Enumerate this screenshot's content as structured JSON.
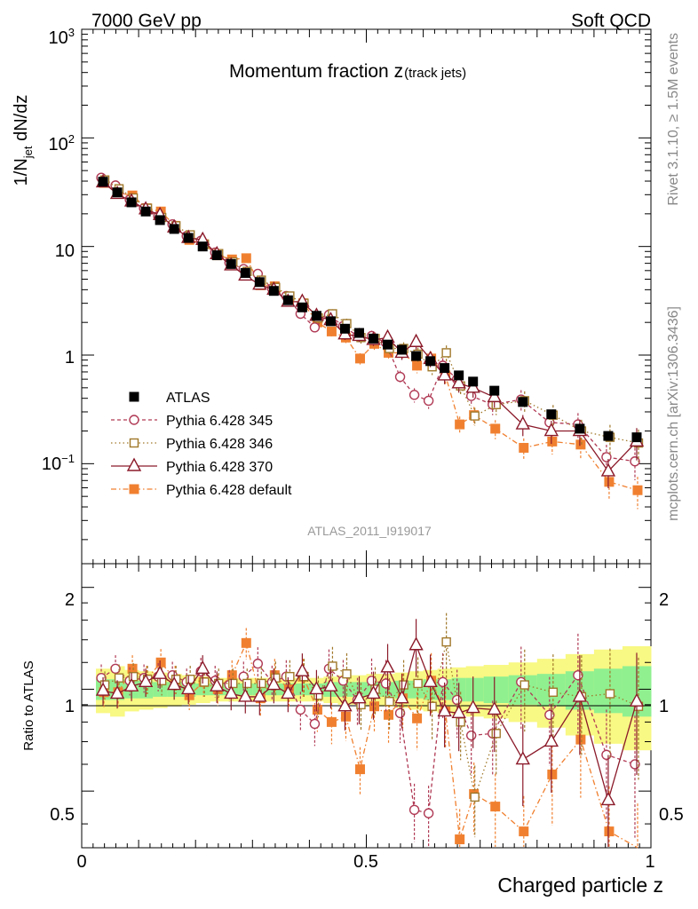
{
  "header": {
    "left": "7000 GeV pp",
    "right": "Soft QCD"
  },
  "side_labels": {
    "top": "Rivet 3.1.10, ≥ 1.5M events",
    "bottom": "mcplots.cern.ch [arXiv:1306.3436]"
  },
  "chart_data": {
    "type": "scatter",
    "title": "Momentum fraction z",
    "title_suffix": "(track jets)",
    "analysis_id": "ATLAS_2011_I919017",
    "xlabel": "Charged particle z",
    "ylabel": "1/N",
    "ylabel_sub": "jet",
    "ylabel_tail": " dN/dz",
    "ratio_ylabel": "Ratio to ATLAS",
    "xlim": [
      0,
      1
    ],
    "ylim": [
      0.012,
      1000
    ],
    "ratio_ylim": [
      0.34,
      2.35
    ],
    "x_ticks": [
      "0",
      "0.5",
      "1"
    ],
    "y_ticks": {
      "t1000": "10",
      "t1000_exp": "3",
      "t100": "10",
      "t100_exp": "2",
      "t10": "10",
      "t1": "1",
      "t01": "10",
      "t01_exp": "−1"
    },
    "ratio_ticks": [
      "0.5",
      "1",
      "2"
    ],
    "x": [
      0.0375,
      0.0625,
      0.0875,
      0.1125,
      0.1375,
      0.1625,
      0.1875,
      0.2125,
      0.2375,
      0.2625,
      0.2875,
      0.3125,
      0.3375,
      0.3625,
      0.3875,
      0.4125,
      0.4375,
      0.4625,
      0.4875,
      0.5125,
      0.5375,
      0.5625,
      0.5875,
      0.6125,
      0.6375,
      0.6625,
      0.6875,
      0.725,
      0.775,
      0.825,
      0.875,
      0.925,
      0.975
    ],
    "series": [
      {
        "name": "ATLAS",
        "color": "#000000",
        "marker": "square-filled",
        "dash": "",
        "values": [
          39.5,
          31.5,
          25.5,
          21.0,
          17.5,
          14.5,
          12.0,
          10.0,
          8.3,
          6.9,
          5.7,
          4.7,
          3.9,
          3.2,
          2.75,
          2.3,
          2.05,
          1.75,
          1.6,
          1.42,
          1.25,
          1.12,
          0.98,
          0.88,
          0.76,
          0.65,
          0.57,
          0.47,
          0.37,
          0.285,
          0.21,
          0.18,
          0.175
        ],
        "ratio": [
          1,
          1,
          1,
          1,
          1,
          1,
          1,
          1,
          1,
          1,
          1,
          1,
          1,
          1,
          1,
          1,
          1,
          1,
          1,
          1,
          1,
          1,
          1,
          1,
          1,
          1,
          1,
          1,
          1,
          1,
          1,
          1,
          1
        ],
        "band_green": [
          0.07,
          0.07,
          0.06,
          0.06,
          0.05,
          0.05,
          0.05,
          0.04,
          0.04,
          0.04,
          0.04,
          0.04,
          0.04,
          0.04,
          0.04,
          0.04,
          0.05,
          0.05,
          0.05,
          0.05,
          0.05,
          0.06,
          0.06,
          0.07,
          0.07,
          0.08,
          0.08,
          0.09,
          0.1,
          0.11,
          0.13,
          0.15,
          0.17
        ],
        "band_yellow": [
          0.15,
          0.17,
          0.14,
          0.13,
          0.12,
          0.11,
          0.1,
          0.09,
          0.08,
          0.08,
          0.08,
          0.08,
          0.08,
          0.08,
          0.08,
          0.08,
          0.09,
          0.1,
          0.1,
          0.11,
          0.11,
          0.12,
          0.13,
          0.14,
          0.15,
          0.16,
          0.17,
          0.18,
          0.2,
          0.23,
          0.27,
          0.31,
          0.34
        ]
      },
      {
        "name": "Pythia 6.428 345",
        "color": "#b03a55",
        "marker": "circle-open",
        "dash": "4,3",
        "values": [
          43.0,
          36.5,
          27.0,
          22.5,
          19.0,
          16.0,
          12.5,
          11.3,
          8.8,
          7.1,
          6.2,
          5.6,
          4.1,
          3.5,
          2.4,
          1.8,
          2.35,
          1.85,
          1.5,
          1.5,
          1.3,
          0.63,
          0.43,
          0.38,
          0.8,
          0.6,
          0.42,
          0.35,
          0.39,
          0.24,
          0.23,
          0.115,
          0.105
        ],
        "ratio": [
          1.08,
          1.15,
          1.06,
          1.08,
          1.09,
          1.1,
          1.05,
          1.13,
          1.06,
          1.03,
          1.09,
          1.19,
          1.05,
          1.09,
          0.87,
          0.79,
          1.15,
          1.06,
          0.93,
          1.06,
          1.04,
          0.85,
          0.44,
          0.43,
          1.05,
          0.93,
          0.73,
          0.74,
          1.05,
          0.84,
          1.1,
          0.64,
          0.6
        ]
      },
      {
        "name": "Pythia 6.428 346",
        "color": "#a0782a",
        "marker": "square-open",
        "dash": "1.5,3",
        "values": [
          41.0,
          34.0,
          28.0,
          22.5,
          18.5,
          15.5,
          12.8,
          10.5,
          8.6,
          7.2,
          5.9,
          4.9,
          4.2,
          3.5,
          3.0,
          2.2,
          2.4,
          1.95,
          1.45,
          1.42,
          1.15,
          1.15,
          1.02,
          0.78,
          1.05,
          0.52,
          0.275,
          0.35,
          0.38,
          0.28,
          0.2,
          0.175,
          0.155
        ],
        "ratio": [
          1.03,
          1.08,
          1.09,
          1.07,
          1.06,
          1.07,
          1.07,
          1.05,
          1.04,
          1.04,
          1.04,
          1.04,
          1.08,
          1.09,
          1.09,
          0.96,
          1.17,
          1.11,
          0.9,
          1.0,
          0.92,
          1.03,
          1.04,
          0.89,
          1.38,
          0.8,
          0.48,
          0.74,
          1.03,
          0.98,
          0.95,
          0.97,
          0.89
        ]
      },
      {
        "name": "Pythia 6.428 370",
        "color": "#8b1a2a",
        "marker": "triangle-open",
        "dash": "",
        "values": [
          39.0,
          30.5,
          26.0,
          22.0,
          19.5,
          15.0,
          12.0,
          11.5,
          8.5,
          6.7,
          5.4,
          4.45,
          4.0,
          3.1,
          3.1,
          2.3,
          2.1,
          1.55,
          1.5,
          1.38,
          1.45,
          1.05,
          1.32,
          0.92,
          0.65,
          0.55,
          0.5,
          0.41,
          0.23,
          0.2,
          0.2,
          0.085,
          0.16
        ],
        "ratio": [
          0.99,
          0.97,
          1.02,
          1.05,
          1.11,
          1.03,
          1.0,
          1.15,
          1.02,
          0.97,
          0.95,
          0.95,
          1.03,
          0.97,
          1.13,
          1.0,
          1.02,
          0.89,
          0.94,
          0.97,
          1.16,
          0.94,
          1.35,
          1.05,
          0.86,
          0.85,
          0.88,
          0.87,
          0.62,
          0.7,
          0.95,
          0.47,
          0.92
        ]
      },
      {
        "name": "Pythia 6.428 default",
        "color": "#f08030",
        "marker": "square-filled",
        "dash": "6,3,1.5,3",
        "values": [
          38.5,
          31.0,
          29.5,
          22.5,
          21.0,
          15.5,
          11.5,
          10.5,
          8.3,
          7.6,
          7.8,
          4.4,
          4.3,
          3.2,
          3.0,
          2.0,
          1.65,
          1.45,
          0.93,
          1.27,
          1.05,
          1.05,
          0.8,
          0.93,
          0.65,
          0.23,
          0.28,
          0.21,
          0.14,
          0.16,
          0.15,
          0.068,
          0.057
        ],
        "ratio": [
          0.98,
          0.98,
          1.15,
          1.07,
          1.2,
          1.07,
          0.96,
          1.05,
          1.0,
          1.1,
          1.37,
          0.94,
          1.1,
          1.0,
          1.09,
          0.87,
          0.8,
          0.83,
          0.58,
          0.89,
          0.84,
          0.94,
          0.82,
          1.06,
          0.86,
          0.36,
          0.49,
          0.45,
          0.38,
          0.56,
          0.71,
          0.38,
          0.33
        ]
      }
    ]
  }
}
